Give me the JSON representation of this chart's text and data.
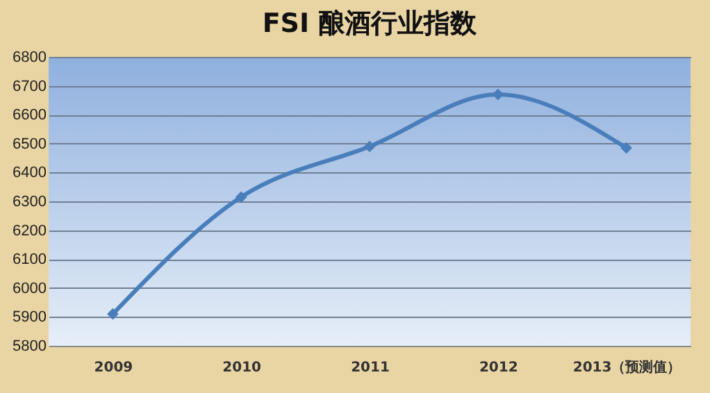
{
  "chart_data": {
    "type": "line",
    "title": "FSI 酿酒行业指数",
    "categories": [
      "2009",
      "2010",
      "2011",
      "2012",
      "2013（预测值）"
    ],
    "series": [
      {
        "color": "#4a7ebb",
        "values": [
          5910,
          6315,
          6490,
          6670,
          6485
        ]
      }
    ],
    "ylim": [
      5800,
      6800
    ],
    "yticks": [
      5800,
      5900,
      6000,
      6100,
      6200,
      6300,
      6400,
      6500,
      6600,
      6700,
      6800
    ],
    "grid": "y",
    "marker": "diamond",
    "legend": false
  }
}
